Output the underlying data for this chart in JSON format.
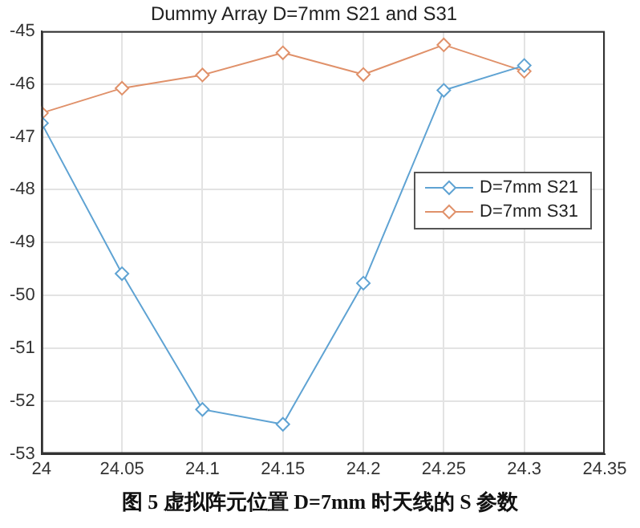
{
  "chart_data": {
    "type": "line",
    "title": "Dummy Array D=7mm S21 and S31",
    "x": [
      24,
      24.05,
      24.1,
      24.15,
      24.2,
      24.25,
      24.3
    ],
    "series": [
      {
        "name": "D=7mm S21",
        "color": "#5fa3d3",
        "values": [
          -46.74,
          -49.59,
          -52.16,
          -52.44,
          -49.77,
          -46.12,
          -45.65
        ]
      },
      {
        "name": "D=7mm S31",
        "color": "#e0916a",
        "values": [
          -46.55,
          -46.08,
          -45.83,
          -45.41,
          -45.82,
          -45.26,
          -45.76
        ]
      }
    ],
    "xlim": [
      24,
      24.35
    ],
    "xticks": [
      24,
      24.05,
      24.1,
      24.15,
      24.2,
      24.25,
      24.3,
      24.35
    ],
    "ylim": [
      -53,
      -45
    ],
    "yticks": [
      -53,
      -52,
      -51,
      -50,
      -49,
      -48,
      -47,
      -46,
      -45
    ],
    "grid": true,
    "legend": "right",
    "marker": "diamond",
    "line_style": "solid",
    "annotations": [
      "图 5  虚拟阵元位置 D=7mm 时天线的 S 参数"
    ]
  }
}
